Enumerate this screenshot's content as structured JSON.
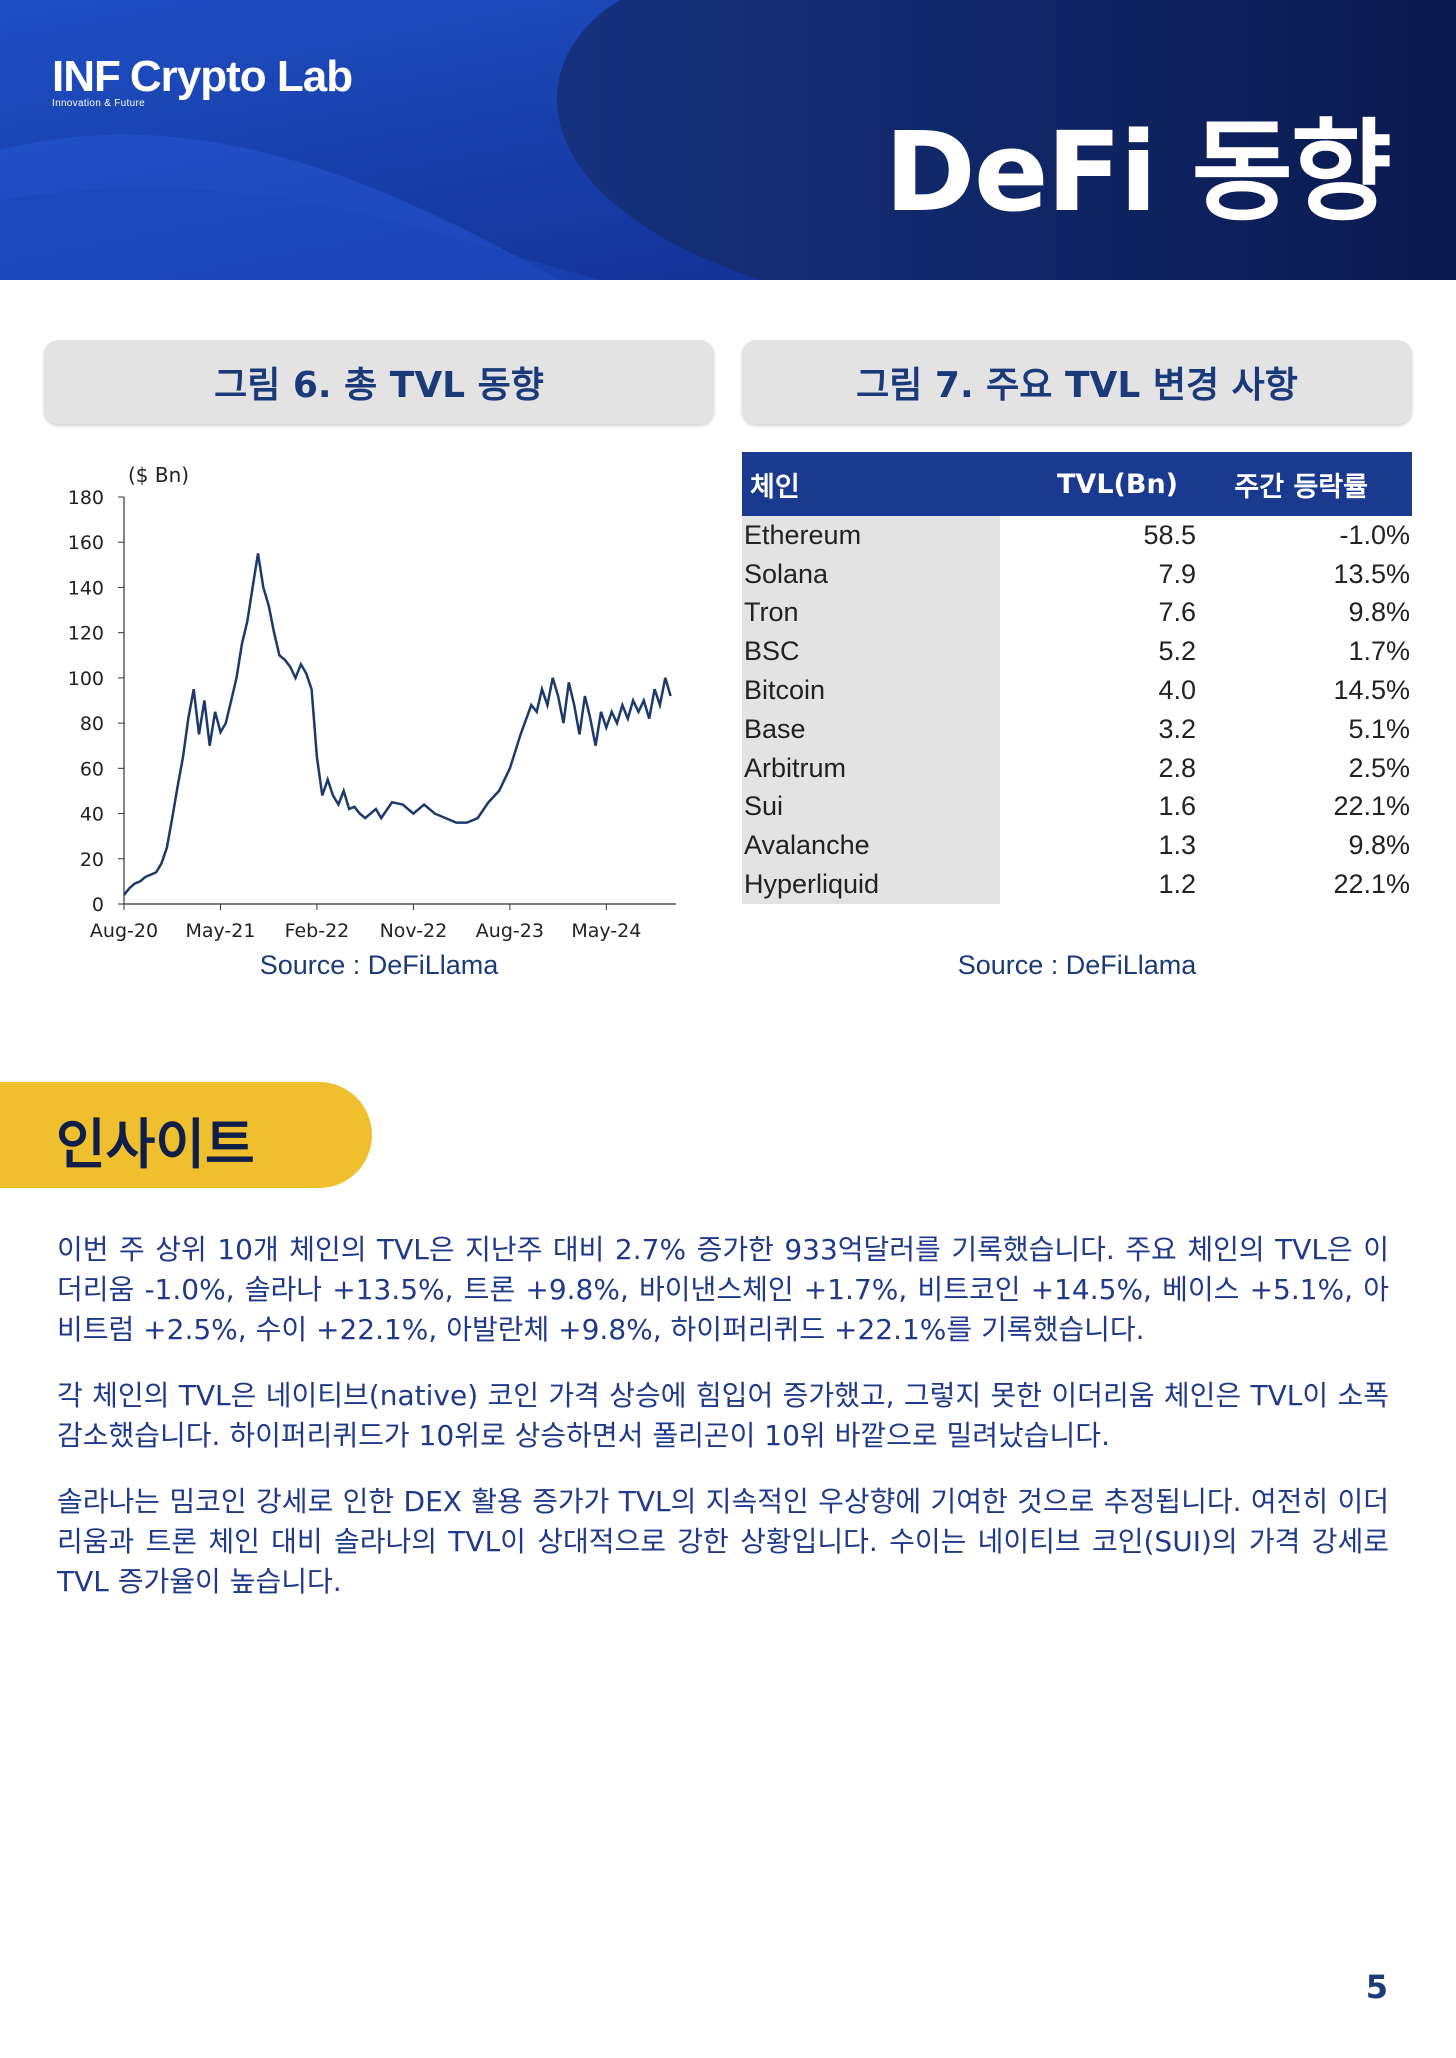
{
  "header": {
    "logo_main": "Crypto Lab",
    "logo_inf": "INF",
    "logo_sub": "Innovation & Future",
    "title": "DeFi 동향"
  },
  "figure6": {
    "title": "그림 6. 총 TVL 동향",
    "source": "Source : DeFiLlama"
  },
  "figure7": {
    "title": "그림 7. 주요 TVL 변경 사항",
    "source": "Source : DeFiLlama",
    "headers": [
      "체인",
      "TVL(Bn)",
      "주간 등락률"
    ],
    "rows": [
      [
        "Ethereum",
        "58.5",
        "-1.0%"
      ],
      [
        "Solana",
        "7.9",
        "13.5%"
      ],
      [
        "Tron",
        "7.6",
        "9.8%"
      ],
      [
        "BSC",
        "5.2",
        "1.7%"
      ],
      [
        "Bitcoin",
        "4.0",
        "14.5%"
      ],
      [
        "Base",
        "3.2",
        "5.1%"
      ],
      [
        "Arbitrum",
        "2.8",
        "2.5%"
      ],
      [
        "Sui",
        "1.6",
        "22.1%"
      ],
      [
        "Avalanche",
        "1.3",
        "9.8%"
      ],
      [
        "Hyperliquid",
        "1.2",
        "22.1%"
      ]
    ]
  },
  "chart_data": {
    "type": "line",
    "unit_label": "($ Bn)",
    "ylim": [
      0,
      180
    ],
    "y_ticks": [
      "0",
      "20",
      "40",
      "60",
      "80",
      "100",
      "120",
      "140",
      "160",
      "180"
    ],
    "x_ticks": [
      "Aug-20",
      "May-21",
      "Feb-22",
      "Nov-22",
      "Aug-23",
      "May-24"
    ],
    "x_tick_months": [
      0,
      9,
      18,
      27,
      36,
      45
    ],
    "x_range_months": [
      0,
      51.5
    ],
    "line_color": "#1b3a6b",
    "series": [
      {
        "x_months": [
          0,
          0.5,
          1,
          1.5,
          2,
          2.5,
          3,
          3.5,
          4,
          4.5,
          5,
          5.5,
          6,
          6.5,
          7,
          7.5,
          8,
          8.5,
          9,
          9.5,
          10,
          10.5,
          11,
          11.5,
          12,
          12.5,
          13,
          13.5,
          14,
          14.5,
          15,
          15.5,
          16,
          16.5,
          17,
          17.5,
          18,
          18.5,
          19,
          19.5,
          20,
          20.5,
          21,
          21.5,
          22,
          22.5,
          23,
          23.5,
          24,
          25,
          26,
          27,
          28,
          29,
          30,
          31,
          32,
          33,
          34,
          35,
          36,
          37,
          38,
          38.5,
          39,
          39.5,
          40,
          40.5,
          41,
          41.5,
          42,
          42.5,
          43,
          43.5,
          44,
          44.5,
          45,
          45.5,
          46,
          46.5,
          47,
          47.5,
          48,
          48.5,
          49,
          49.5,
          50,
          50.5,
          51
        ],
        "values": [
          4,
          7,
          9,
          10,
          12,
          13,
          14,
          18,
          25,
          38,
          52,
          65,
          82,
          95,
          75,
          90,
          70,
          85,
          76,
          80,
          90,
          100,
          115,
          125,
          140,
          155,
          140,
          132,
          120,
          110,
          108,
          105,
          100,
          106,
          102,
          95,
          65,
          48,
          55,
          48,
          44,
          50,
          42,
          43,
          40,
          38,
          40,
          42,
          38,
          45,
          44,
          40,
          44,
          40,
          38,
          36,
          36,
          38,
          45,
          50,
          60,
          75,
          88,
          85,
          95,
          88,
          100,
          92,
          80,
          98,
          88,
          75,
          92,
          82,
          70,
          85,
          78,
          85,
          80,
          88,
          82,
          90,
          85,
          90,
          82,
          95,
          88,
          100,
          92
        ]
      }
    ]
  },
  "insight": {
    "heading": "인사이트",
    "paragraphs": [
      "이번 주 상위 10개 체인의 TVL은 지난주 대비 2.7% 증가한 933억달러를 기록했습니다. 주요 체인의 TVL은 이더리움 -1.0%, 솔라나 +13.5%, 트론 +9.8%, 바이낸스체인 +1.7%, 비트코인 +14.5%, 베이스 +5.1%, 아비트럼 +2.5%, 수이 +22.1%, 아발란체 +9.8%, 하이퍼리퀴드 +22.1%를 기록했습니다.",
      "각 체인의 TVL은 네이티브(native) 코인 가격 상승에 힘입어 증가했고, 그렇지 못한 이더리움 체인은 TVL이 소폭 감소했습니다. 하이퍼리퀴드가 10위로 상승하면서 폴리곤이 10위 바깥으로 밀려났습니다.",
      "솔라나는 밈코인 강세로 인한 DEX 활용 증가가 TVL의 지속적인 우상향에 기여한 것으로 추정됩니다. 여전히 이더리움과 트론 체인 대비 솔라나의 TVL이 상대적으로 강한 상황입니다. 수이는 네이티브 코인(SUI)의 가격 강세로 TVL 증가율이 높습니다."
    ]
  },
  "page_number": "5"
}
